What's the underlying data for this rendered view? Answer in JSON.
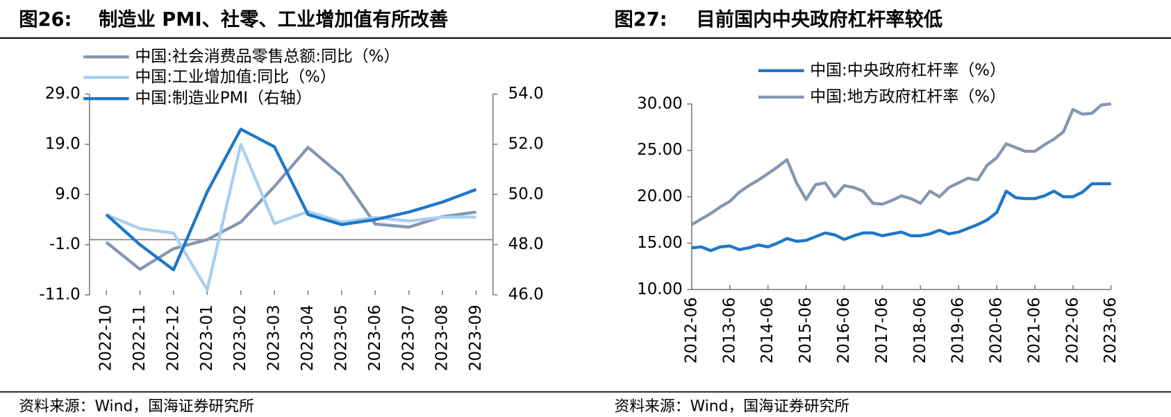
{
  "chart_data": [
    {
      "type": "line",
      "label": "图26:",
      "title": "制造业 PMI、社零、工业增加值有所改善",
      "source": "资料来源：Wind，国海证券研究所",
      "categories": [
        "2022-10",
        "2022-11",
        "2022-12",
        "2023-01",
        "2023-02",
        "2023-03",
        "2023-04",
        "2023-05",
        "2023-06",
        "2023-07",
        "2023-08",
        "2023-09"
      ],
      "series": [
        {
          "name": "中国:社会消费品零售总额:同比（%）",
          "color": "#8497b0",
          "values": [
            -0.5,
            -5.9,
            -1.8,
            0.0,
            3.5,
            10.6,
            18.4,
            12.7,
            3.1,
            2.5,
            4.6,
            5.5
          ]
        },
        {
          "name": "中国:工业增加值:同比（%）",
          "color": "#a9cff0",
          "values": [
            5.0,
            2.2,
            1.3,
            -10.0,
            19.0,
            3.2,
            5.6,
            3.5,
            4.4,
            3.7,
            4.5,
            4.5
          ]
        },
        {
          "name": "中国:制造业PMI（右轴）",
          "color": "#1f77c8",
          "axis": "y2",
          "values": [
            49.2,
            48.0,
            47.0,
            50.1,
            52.6,
            51.9,
            49.2,
            48.8,
            49.0,
            49.3,
            49.7,
            50.2
          ]
        }
      ],
      "ylim": [
        -11,
        29
      ],
      "yticks": [
        {
          "value": -11,
          "label": "-11.0"
        },
        {
          "value": -1,
          "label": "-1.0"
        },
        {
          "value": 9,
          "label": "9.0"
        },
        {
          "value": 19,
          "label": "19.0"
        },
        {
          "value": 29,
          "label": "29.0"
        }
      ],
      "y2lim": [
        46,
        54
      ],
      "y2ticks": [
        {
          "value": 46,
          "label": "46.0"
        },
        {
          "value": 48,
          "label": "48.0"
        },
        {
          "value": 50,
          "label": "50.0"
        },
        {
          "value": 52,
          "label": "52.0"
        },
        {
          "value": 54,
          "label": "54.0"
        }
      ],
      "grid": false
    },
    {
      "type": "line",
      "label": "图27:",
      "title": "目前国内中央政府杠杆率较低",
      "source": "资料来源：Wind，国海证券研究所",
      "categories": [
        "2012-06",
        null,
        null,
        null,
        "2013-06",
        null,
        null,
        null,
        "2014-06",
        null,
        null,
        null,
        "2015-06",
        null,
        null,
        null,
        "2016-06",
        null,
        null,
        null,
        "2017-06",
        null,
        null,
        null,
        "2018-06",
        null,
        null,
        null,
        "2019-06",
        null,
        null,
        null,
        "2020-06",
        null,
        null,
        null,
        "2021-06",
        null,
        null,
        null,
        "2022-06",
        null,
        null,
        null,
        "2023-06"
      ],
      "series": [
        {
          "name": "中国:中央政府杠杆率（%）",
          "color": "#1f77c8",
          "values": [
            14.5,
            14.6,
            14.2,
            14.6,
            14.7,
            14.3,
            14.5,
            14.8,
            14.6,
            15.0,
            15.5,
            15.2,
            15.3,
            15.7,
            16.1,
            15.9,
            15.4,
            15.8,
            16.1,
            16.1,
            15.8,
            16.0,
            16.2,
            15.8,
            15.8,
            16.0,
            16.4,
            16.0,
            16.2,
            16.6,
            17.0,
            17.5,
            18.3,
            20.6,
            19.9,
            19.8,
            19.8,
            20.1,
            20.6,
            20.0,
            20.0,
            20.5,
            21.4,
            21.4,
            21.4
          ]
        },
        {
          "name": "中国:地方政府杠杆率（%）",
          "color": "#8497b0",
          "values": [
            17.0,
            17.6,
            18.2,
            18.9,
            19.5,
            20.5,
            21.2,
            21.8,
            22.5,
            23.2,
            24.0,
            21.5,
            19.7,
            21.3,
            21.5,
            20.0,
            21.2,
            21.0,
            20.6,
            19.3,
            19.2,
            19.6,
            20.1,
            19.8,
            19.3,
            20.6,
            20.0,
            21.0,
            21.5,
            22.0,
            21.8,
            23.4,
            24.2,
            25.7,
            25.3,
            24.9,
            24.9,
            25.6,
            26.2,
            27.0,
            29.4,
            28.9,
            29.0,
            29.9,
            30.0
          ]
        }
      ],
      "ylim": [
        10,
        30
      ],
      "yticks": [
        {
          "value": 10,
          "label": "10.00"
        },
        {
          "value": 15,
          "label": "15.00"
        },
        {
          "value": 20,
          "label": "20.00"
        },
        {
          "value": 25,
          "label": "25.00"
        },
        {
          "value": 30,
          "label": "30.00"
        }
      ],
      "grid": false
    }
  ]
}
